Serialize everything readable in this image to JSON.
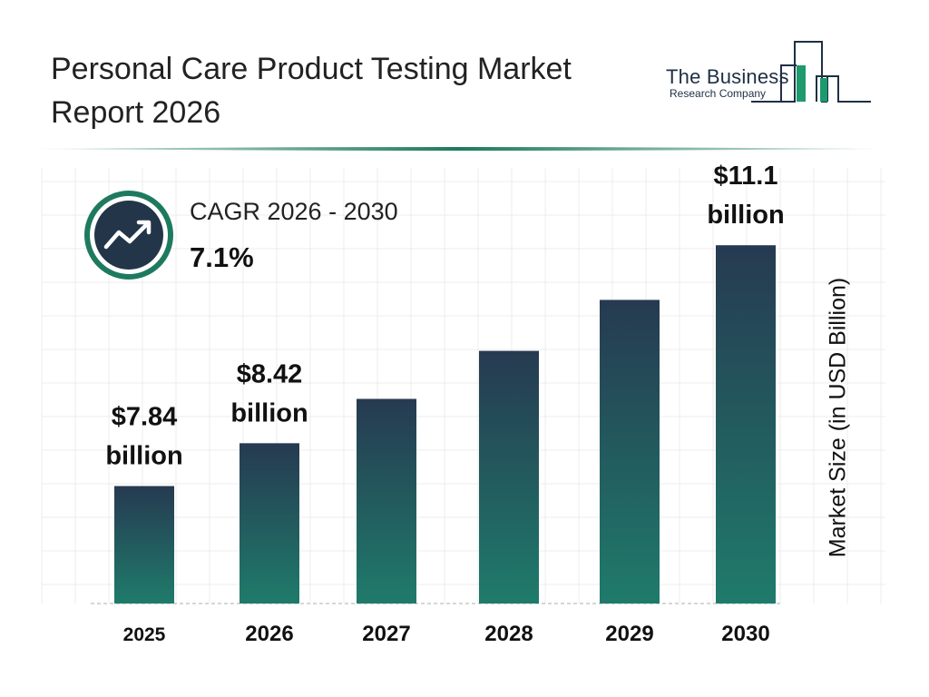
{
  "header": {
    "title_line1": "Personal Care Product Testing Market",
    "title_line2": "Report 2026"
  },
  "logo": {
    "line1": "The Business",
    "line2": "Research Company",
    "colors": {
      "navy": "#1f2f44",
      "teal": "#1e9a6e"
    }
  },
  "cagr": {
    "label": "CAGR 2026 - 2030",
    "value": "7.1%",
    "icon": "trending-up-icon"
  },
  "chart_data": {
    "type": "bar",
    "categories": [
      "2025",
      "2026",
      "2027",
      "2028",
      "2029",
      "2030"
    ],
    "values": [
      7.84,
      8.42,
      9.02,
      9.67,
      10.36,
      11.1
    ],
    "data_labels": [
      [
        "$7.84",
        "billion"
      ],
      [
        "$8.42",
        "billion"
      ],
      null,
      null,
      null,
      [
        "$11.1",
        "billion"
      ]
    ],
    "ylabel": "Market Size (in USD Billion)",
    "xlabel": "",
    "grid": true,
    "colors": {
      "bar_top": "#263a51",
      "bar_bottom": "#1f7b6b"
    }
  }
}
